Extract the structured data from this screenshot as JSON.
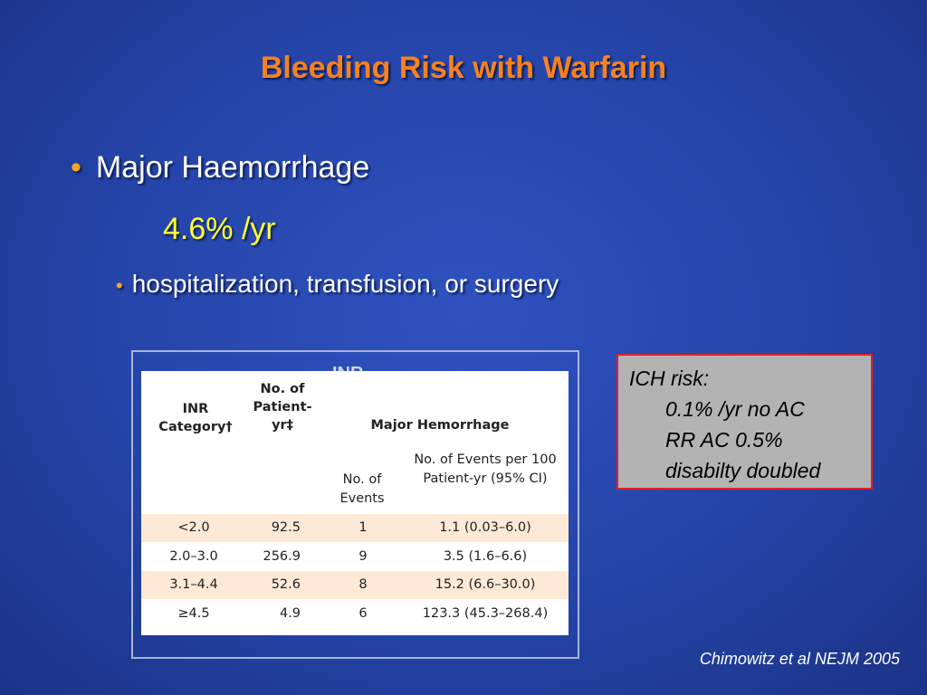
{
  "title": "Bleeding Risk with Warfarin",
  "bullets": [
    {
      "text": "Major Haemorrhage",
      "detail": "4.6% /yr"
    },
    {
      "text": "hospitalization, transfusion, or surgery"
    }
  ],
  "table": {
    "hidden_label": "INR",
    "headers": {
      "category": "INR Category†",
      "patient_yr": "No. of Patient-yr‡",
      "group": "Major Hemorrhage",
      "events": "No. of Events",
      "rate": "No. of Events per 100 Patient-yr (95% CI)"
    },
    "rows": [
      [
        "<2.0",
        "92.5",
        "1",
        "1.1 (0.03–6.0)"
      ],
      [
        "2.0–3.0",
        "256.9",
        "9",
        "3.5 (1.6–6.6)"
      ],
      [
        "3.1–4.4",
        "52.6",
        "8",
        "15.2 (6.6–30.0)"
      ],
      [
        "≥4.5",
        "4.9",
        "6",
        "123.3 (45.3–268.4)"
      ]
    ]
  },
  "callout": {
    "heading": "ICH risk:",
    "lines": [
      "0.1% /yr no AC",
      "RR AC 0.5%",
      "disabilty doubled"
    ]
  },
  "citation": "Chimowitz et al NEJM 2005"
}
